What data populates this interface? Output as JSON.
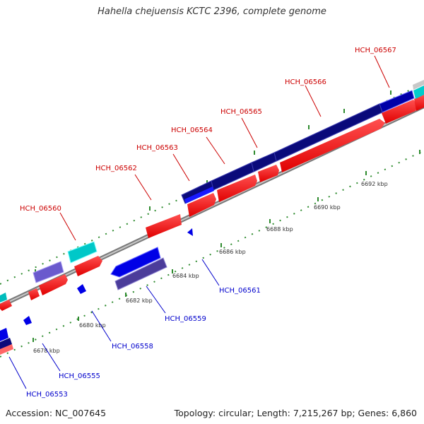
{
  "title": "Hahella chejuensis KCTC 2396, complete genome",
  "footer": {
    "accession": "Accession: NC_007645",
    "topology": "Topology: circular; Length: 7,215,267 bp; Genes: 6,860"
  },
  "colors": {
    "forward_label": "#cc0000",
    "reverse_label": "#0000cc",
    "ruler_tick": "#2e8b2e",
    "backbone": "#999999"
  },
  "forward_genes": [
    "HCH_06560",
    "HCH_06562",
    "HCH_06563",
    "HCH_06564",
    "HCH_06565",
    "HCH_06566",
    "HCH_06567"
  ],
  "reverse_genes": [
    "HCH_06553",
    "HCH_06555",
    "HCH_06558",
    "HCH_06559",
    "HCH_06561"
  ],
  "ruler_labels": [
    "6678 kbp",
    "6680 kbp",
    "6682 kbp",
    "6684 kbp",
    "6686 kbp",
    "6688 kbp",
    "6690 kbp",
    "6692 kbp"
  ]
}
